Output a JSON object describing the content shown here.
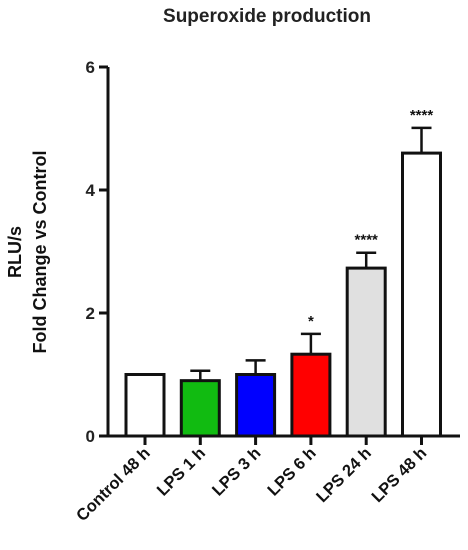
{
  "chart_data": {
    "type": "bar",
    "title": "Superoxide production",
    "ylabel_line1": "RLU/s",
    "ylabel_line2": "Fold Change vs Control",
    "xlabel": "",
    "ylim": [
      0,
      6
    ],
    "yticks": [
      0,
      2,
      4,
      6
    ],
    "categories": [
      "Control 48 h",
      "LPS 1 h",
      "LPS 3 h",
      "LPS 6 h",
      "LPS 24 h",
      "LPS 48 h"
    ],
    "values": [
      1.0,
      0.9,
      1.0,
      1.33,
      2.73,
      4.6
    ],
    "errors": [
      0.0,
      0.16,
      0.23,
      0.33,
      0.25,
      0.41
    ],
    "significance": [
      "",
      "",
      "",
      "*",
      "****",
      "****"
    ],
    "colors": [
      "#ffffff",
      "#11bb11",
      "#0000ff",
      "#ff0000",
      "#e0e0e0",
      "#ffffff"
    ],
    "grid": false,
    "legend": "none"
  }
}
